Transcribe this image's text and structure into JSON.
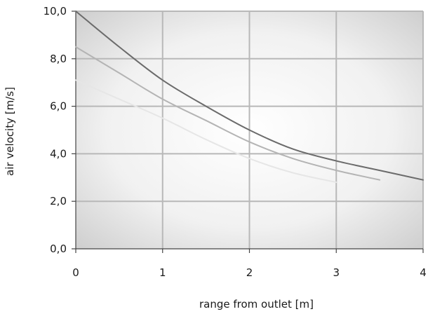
{
  "chart_data": {
    "type": "line",
    "title": "",
    "xlabel": "range from outlet [m]",
    "ylabel": "air velocity [m/s]",
    "xlim": [
      0,
      4
    ],
    "ylim": [
      0,
      10
    ],
    "x_ticks": [
      0,
      1,
      2,
      3,
      4
    ],
    "x_tick_labels": [
      "0",
      "1",
      "2",
      "3",
      "4"
    ],
    "y_ticks": [
      0,
      2,
      4,
      6,
      8,
      10
    ],
    "y_tick_labels": [
      "0,0",
      "2,0",
      "4,0",
      "6,0",
      "8,0",
      "10,0"
    ],
    "grid": true,
    "background": "radial gradient, white center to grey edges",
    "series": [
      {
        "color": "#6b6b6b",
        "x": [
          0,
          0.5,
          1.0,
          1.5,
          2.0,
          2.5,
          3.0,
          3.5,
          4.0
        ],
        "y": [
          10.0,
          8.5,
          7.1,
          6.0,
          5.0,
          4.2,
          3.7,
          3.3,
          2.9
        ]
      },
      {
        "color": "#b4b4b4",
        "x": [
          0,
          0.5,
          1.0,
          1.5,
          2.0,
          2.5,
          3.0,
          3.5
        ],
        "y": [
          8.5,
          7.4,
          6.3,
          5.4,
          4.5,
          3.8,
          3.3,
          2.9
        ]
      },
      {
        "color": "#e6e6e6",
        "x": [
          0,
          0.5,
          1.0,
          1.5,
          2.0,
          2.5,
          3.0
        ],
        "y": [
          7.1,
          6.3,
          5.5,
          4.6,
          3.8,
          3.2,
          2.8
        ]
      }
    ]
  }
}
